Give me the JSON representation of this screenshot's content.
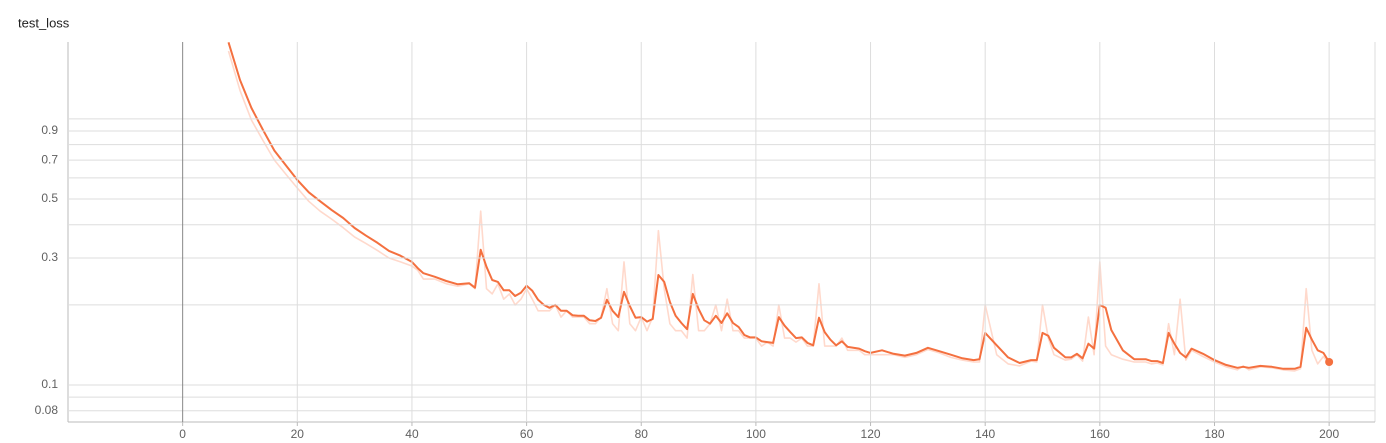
{
  "chart_data": {
    "type": "line",
    "title": "test_loss",
    "log_y": true,
    "grid": true,
    "xlim": [
      -20,
      208
    ],
    "ylim": [
      0.0726,
      1.945
    ],
    "xticks": [
      0,
      20,
      40,
      60,
      80,
      100,
      120,
      140,
      160,
      180,
      200
    ],
    "yticks": [
      0.08,
      0.1,
      0.3,
      0.5,
      0.7,
      0.9
    ],
    "minor_yticks": [
      0.09,
      0.2,
      0.4,
      0.6,
      0.8,
      1
    ],
    "x": [
      8,
      10,
      12,
      14,
      16,
      18,
      20,
      22,
      24,
      26,
      28,
      30,
      32,
      34,
      36,
      38,
      40,
      41,
      42,
      44,
      46,
      48,
      50,
      51,
      52,
      53,
      54,
      55,
      56,
      57,
      58,
      59,
      60,
      61,
      62,
      63,
      64,
      65,
      66,
      67,
      68,
      69,
      70,
      71,
      72,
      73,
      74,
      75,
      76,
      77,
      78,
      79,
      80,
      81,
      82,
      83,
      84,
      85,
      86,
      87,
      88,
      89,
      90,
      91,
      92,
      93,
      94,
      95,
      96,
      97,
      98,
      99,
      100,
      101,
      102,
      103,
      104,
      105,
      106,
      107,
      108,
      109,
      110,
      111,
      112,
      113,
      114,
      115,
      116,
      117,
      118,
      119,
      120,
      122,
      124,
      126,
      128,
      130,
      132,
      134,
      136,
      138,
      139,
      140,
      142,
      144,
      146,
      148,
      149,
      150,
      151,
      152,
      154,
      155,
      156,
      157,
      158,
      159,
      160,
      161,
      162,
      164,
      166,
      168,
      169,
      170,
      171,
      172,
      173,
      174,
      175,
      176,
      178,
      180,
      182,
      184,
      185,
      186,
      188,
      190,
      192,
      194,
      195,
      196,
      197,
      198,
      199,
      200
    ],
    "series": [
      {
        "name": "raw",
        "color": "#ffd9cc",
        "values": [
          1.8,
          1.28,
          0.99,
          0.83,
          0.7,
          0.62,
          0.55,
          0.49,
          0.45,
          0.42,
          0.39,
          0.36,
          0.34,
          0.32,
          0.3,
          0.29,
          0.28,
          0.27,
          0.25,
          0.25,
          0.24,
          0.235,
          0.24,
          0.23,
          0.45,
          0.23,
          0.22,
          0.24,
          0.21,
          0.22,
          0.2,
          0.21,
          0.23,
          0.21,
          0.19,
          0.19,
          0.19,
          0.2,
          0.18,
          0.19,
          0.18,
          0.18,
          0.18,
          0.17,
          0.17,
          0.18,
          0.23,
          0.17,
          0.16,
          0.29,
          0.17,
          0.16,
          0.18,
          0.16,
          0.18,
          0.38,
          0.23,
          0.17,
          0.16,
          0.16,
          0.15,
          0.26,
          0.16,
          0.16,
          0.17,
          0.2,
          0.16,
          0.21,
          0.16,
          0.16,
          0.15,
          0.15,
          0.15,
          0.14,
          0.145,
          0.14,
          0.2,
          0.15,
          0.15,
          0.145,
          0.15,
          0.14,
          0.14,
          0.24,
          0.14,
          0.14,
          0.14,
          0.15,
          0.135,
          0.135,
          0.135,
          0.13,
          0.13,
          0.13,
          0.13,
          0.127,
          0.13,
          0.136,
          0.132,
          0.127,
          0.124,
          0.122,
          0.122,
          0.2,
          0.13,
          0.12,
          0.118,
          0.123,
          0.122,
          0.2,
          0.15,
          0.13,
          0.124,
          0.125,
          0.13,
          0.123,
          0.18,
          0.13,
          0.29,
          0.14,
          0.13,
          0.125,
          0.122,
          0.122,
          0.12,
          0.121,
          0.119,
          0.17,
          0.13,
          0.21,
          0.124,
          0.135,
          0.128,
          0.122,
          0.117,
          0.114,
          0.118,
          0.114,
          0.117,
          0.116,
          0.114,
          0.113,
          0.115,
          0.23,
          0.135,
          0.12,
          0.128,
          0.12
        ]
      },
      {
        "name": "smoothed",
        "color": "#f4703f",
        "values": [
          1.94,
          1.4,
          1.1,
          0.91,
          0.76,
          0.67,
          0.59,
          0.53,
          0.49,
          0.454,
          0.424,
          0.389,
          0.364,
          0.342,
          0.319,
          0.306,
          0.29,
          0.275,
          0.263,
          0.255,
          0.246,
          0.239,
          0.241,
          0.232,
          0.322,
          0.278,
          0.248,
          0.244,
          0.227,
          0.227,
          0.216,
          0.222,
          0.236,
          0.226,
          0.209,
          0.2,
          0.195,
          0.2,
          0.19,
          0.19,
          0.183,
          0.182,
          0.182,
          0.175,
          0.174,
          0.179,
          0.209,
          0.19,
          0.18,
          0.224,
          0.198,
          0.179,
          0.18,
          0.173,
          0.177,
          0.259,
          0.244,
          0.205,
          0.182,
          0.171,
          0.162,
          0.22,
          0.193,
          0.175,
          0.17,
          0.182,
          0.171,
          0.186,
          0.171,
          0.165,
          0.154,
          0.151,
          0.151,
          0.146,
          0.145,
          0.144,
          0.18,
          0.167,
          0.158,
          0.15,
          0.151,
          0.144,
          0.141,
          0.179,
          0.158,
          0.148,
          0.141,
          0.146,
          0.139,
          0.138,
          0.137,
          0.134,
          0.132,
          0.135,
          0.131,
          0.129,
          0.132,
          0.138,
          0.134,
          0.13,
          0.126,
          0.124,
          0.125,
          0.157,
          0.141,
          0.127,
          0.121,
          0.124,
          0.124,
          0.157,
          0.153,
          0.138,
          0.127,
          0.127,
          0.131,
          0.126,
          0.143,
          0.137,
          0.2,
          0.195,
          0.161,
          0.135,
          0.125,
          0.125,
          0.123,
          0.123,
          0.121,
          0.157,
          0.143,
          0.132,
          0.127,
          0.137,
          0.131,
          0.124,
          0.119,
          0.116,
          0.117,
          0.116,
          0.118,
          0.117,
          0.115,
          0.115,
          0.117,
          0.164,
          0.148,
          0.135,
          0.132,
          0.122
        ]
      }
    ]
  }
}
